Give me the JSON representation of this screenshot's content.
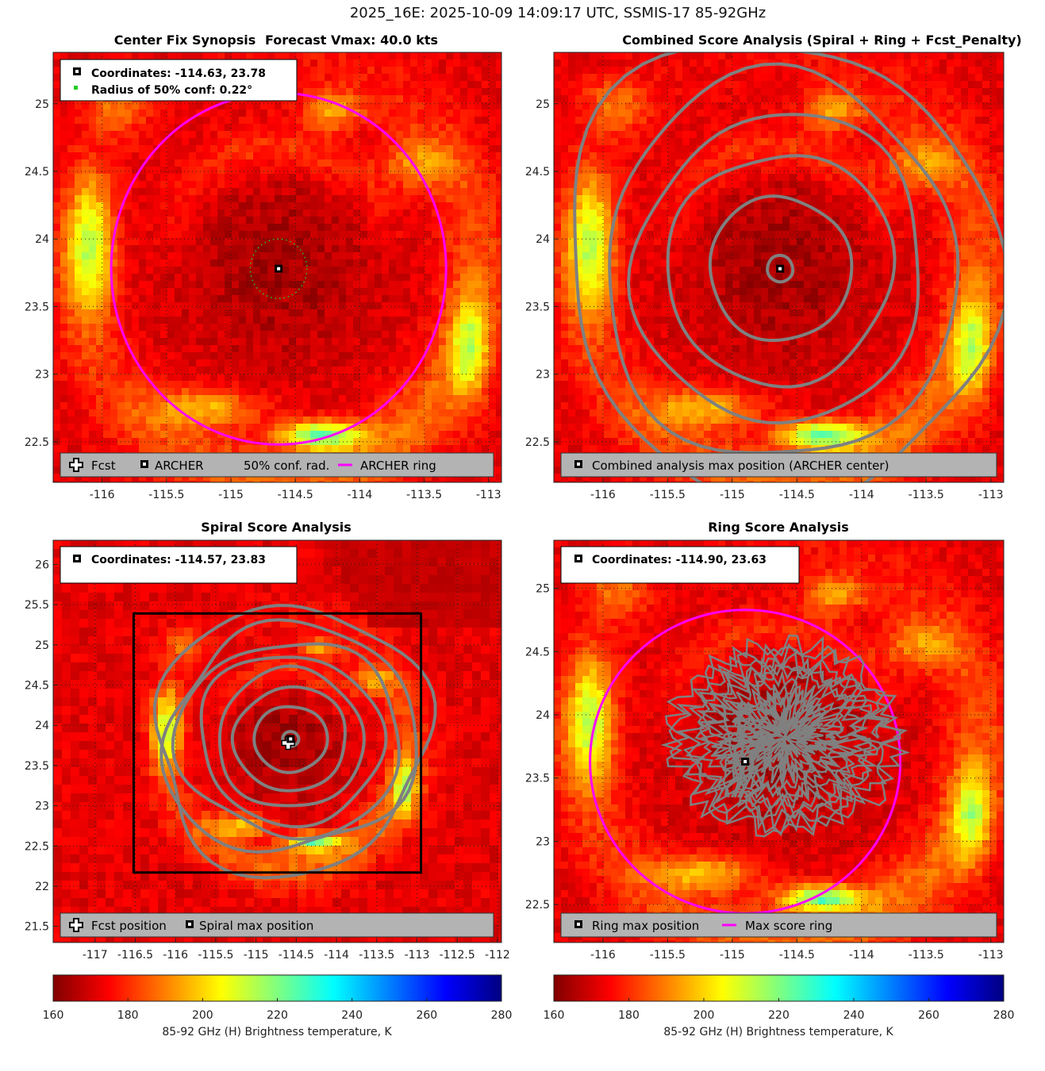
{
  "figure_title": "2025_16E: 2025-10-09 14:09:17 UTC, SSMIS-17 85-92GHz",
  "colors": {
    "ring": "#ff00ff",
    "contour": "#808080",
    "conf_dots": "#22cc22",
    "legend_bg": "#b3b3b3"
  },
  "chart_data": [
    {
      "id": "synopsis",
      "type": "heatmap",
      "title": "Center Fix Synopsis",
      "subtitle": "Forecast Vmax: 40.0 kts",
      "xlim": [
        -116.38,
        -112.9
      ],
      "ylim": [
        22.2,
        25.38
      ],
      "xticks": [
        -116,
        -115.5,
        -115,
        -114.5,
        -114,
        -113.5,
        -113
      ],
      "yticks": [
        22.5,
        23,
        23.5,
        24,
        24.5,
        25
      ],
      "info_lines": [
        "Coordinates: -114.63, 23.78",
        "Radius of 50% conf: 0.22°"
      ],
      "center": [
        -114.63,
        23.78
      ],
      "conf_radius_deg": 0.22,
      "ring": {
        "center": [
          -114.63,
          23.78
        ],
        "radius_deg": 1.3
      },
      "legend": [
        "Fcst",
        "ARCHER",
        "50% conf. rad.",
        "ARCHER ring"
      ]
    },
    {
      "id": "combined",
      "type": "heatmap",
      "title": "Combined Score Analysis (Spiral + Ring + Fcst_Penalty)",
      "xlim": [
        -116.38,
        -112.9
      ],
      "ylim": [
        22.2,
        25.38
      ],
      "xticks": [
        -116,
        -115.5,
        -115,
        -114.5,
        -114,
        -113.5,
        -113
      ],
      "yticks": [
        22.5,
        23,
        23.5,
        24,
        24.5,
        25
      ],
      "center": [
        -114.63,
        23.78
      ],
      "contour_radii_deg": [
        0.1,
        0.55,
        0.88,
        1.15,
        1.42,
        1.72
      ],
      "legend": [
        "Combined analysis max position (ARCHER center)"
      ]
    },
    {
      "id": "spiral",
      "type": "heatmap",
      "title": "Spiral Score Analysis",
      "xlim": [
        -117.52,
        -111.95
      ],
      "ylim": [
        21.3,
        26.3
      ],
      "xticks": [
        -117,
        -116.5,
        -116,
        -115.5,
        -115,
        -114.5,
        -114,
        -113.5,
        -113,
        -112.5,
        -112
      ],
      "yticks": [
        21.5,
        22,
        22.5,
        23,
        23.5,
        24,
        24.5,
        25,
        25.5,
        26
      ],
      "info_lines": [
        "Coordinates: -114.57, 23.83"
      ],
      "center": [
        -114.57,
        23.83
      ],
      "fcst": [
        -114.6,
        23.78
      ],
      "box": {
        "x": [
          -116.52,
          -112.95
        ],
        "y": [
          22.17,
          25.39
        ]
      },
      "contour_radii_deg": [
        0.1,
        0.45,
        0.7,
        0.92,
        1.14,
        1.35,
        1.55,
        1.75
      ],
      "legend": [
        "Fcst position",
        "Spiral max position"
      ]
    },
    {
      "id": "ring",
      "type": "heatmap",
      "title": "Ring Score Analysis",
      "xlim": [
        -116.38,
        -112.9
      ],
      "ylim": [
        22.2,
        25.38
      ],
      "xticks": [
        -116,
        -115.5,
        -115,
        -114.5,
        -114,
        -113.5,
        -113
      ],
      "yticks": [
        22.5,
        23,
        23.5,
        24,
        24.5,
        25
      ],
      "info_lines": [
        "Coordinates: -114.90, 23.63"
      ],
      "center": [
        -114.9,
        23.63
      ],
      "ring": {
        "center": [
          -114.9,
          23.63
        ],
        "radius_deg": 1.2
      },
      "legend": [
        "Ring max position",
        "Max score ring"
      ]
    }
  ],
  "colorbars": [
    {
      "id": "cb-left",
      "ticks": [
        160,
        180,
        200,
        220,
        240,
        260,
        280
      ],
      "label": "85-92 GHz (H) Brightness temperature, K"
    },
    {
      "id": "cb-right",
      "ticks": [
        160,
        180,
        200,
        220,
        240,
        260,
        280
      ],
      "label": "85-92 GHz (H) Brightness temperature, K"
    }
  ]
}
